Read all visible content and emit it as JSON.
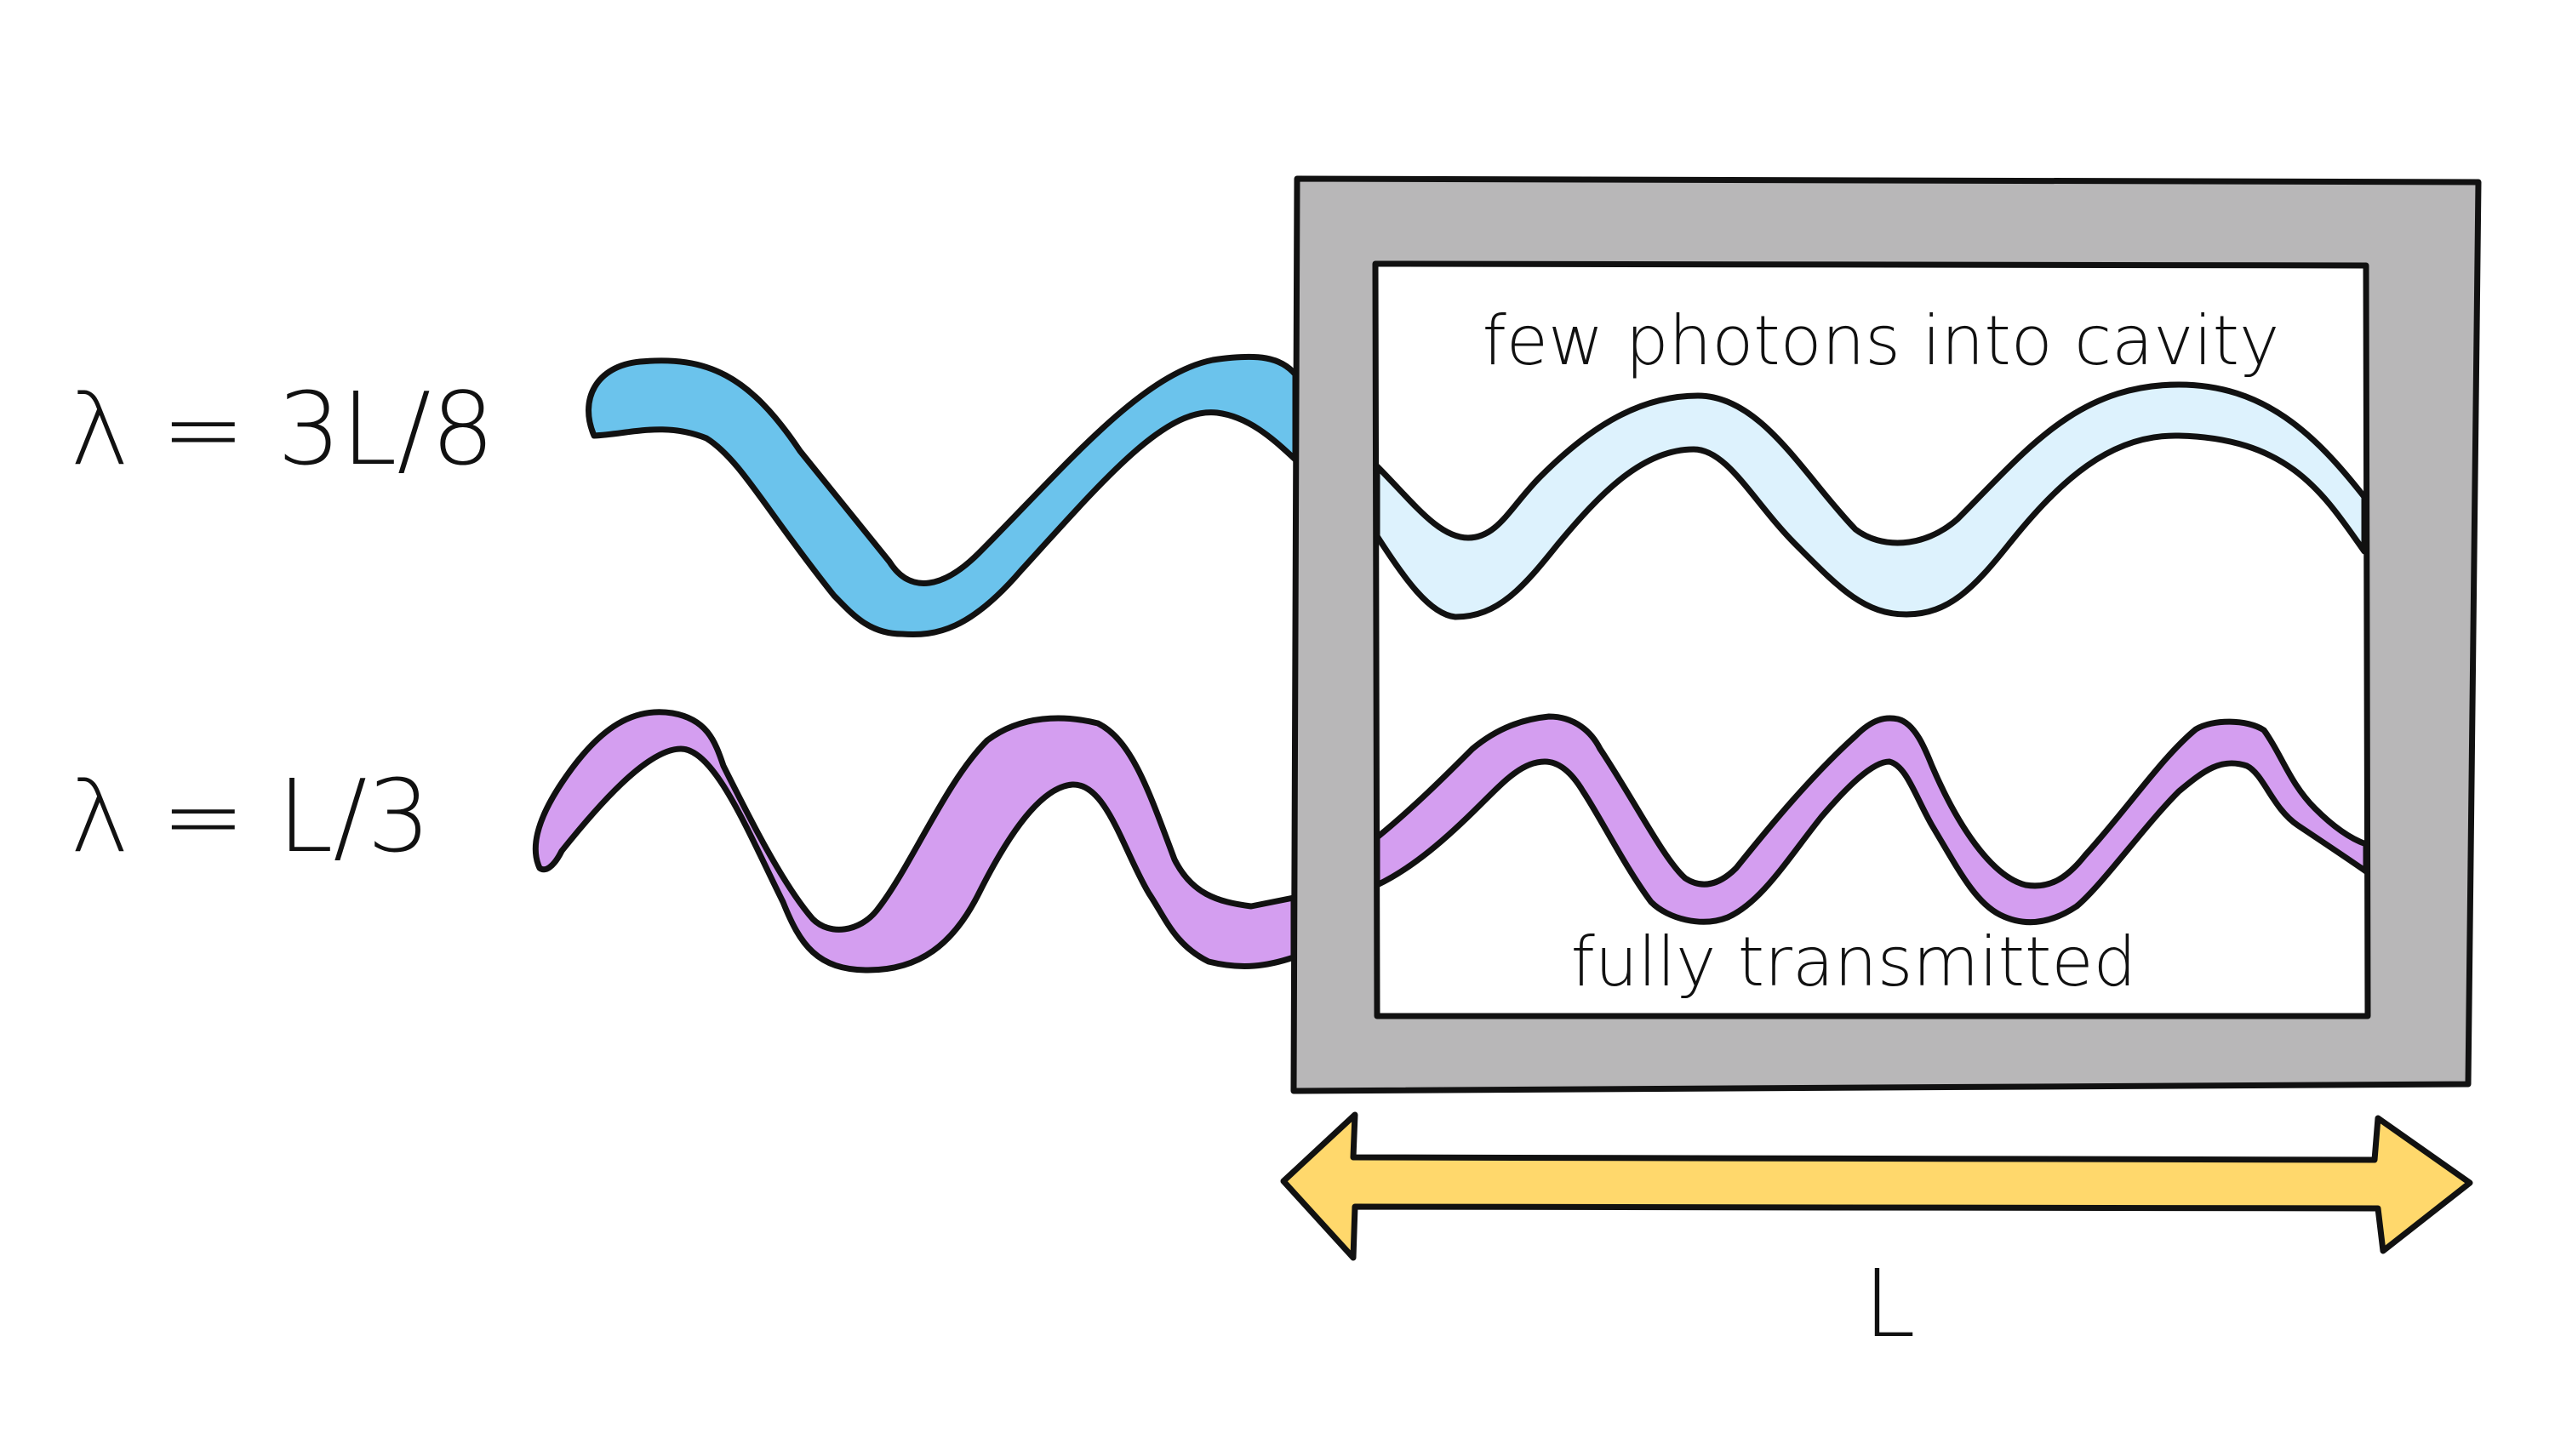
{
  "labels": {
    "wave_top": "λ = 3L/8",
    "wave_bottom": "λ = L/3",
    "cavity_top_note": "few photons into cavity",
    "cavity_bottom_note": "fully transmitted",
    "length": "L"
  },
  "colors": {
    "wave_top_outside": "#6BC3EC",
    "wave_top_inside": "#DDF2FD",
    "wave_bottom": "#D49EF0",
    "cavity_wall": "#B8B7B8",
    "length_arrow": "#FFD86C",
    "ink": "#111111",
    "background": "#FFFFFF"
  }
}
